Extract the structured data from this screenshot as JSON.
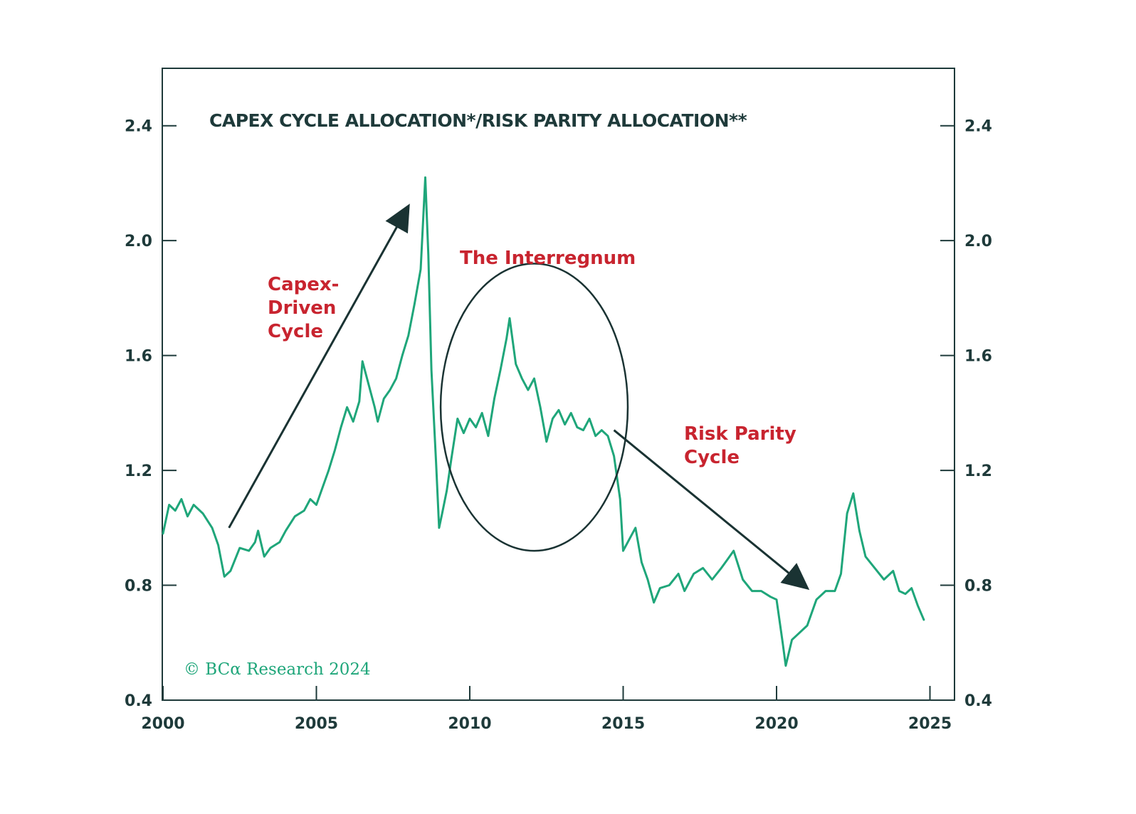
{
  "colors": {
    "line": "#1fa67a",
    "frame": "#1e3a3a",
    "annotation": "#c8242f",
    "arrow": "#1a3333"
  },
  "chart_data": {
    "type": "line",
    "title": "CAPEX CYCLE ALLOCATION*/RISK PARITY ALLOCATION**",
    "xlim": [
      2000,
      2025.8
    ],
    "ylim": [
      0.4,
      2.6
    ],
    "x_ticks": [
      2000,
      2005,
      2010,
      2015,
      2020,
      2025
    ],
    "x_tick_labels": [
      "2000",
      "2005",
      "2010",
      "2015",
      "2020",
      "2025"
    ],
    "y_ticks": [
      0.4,
      0.8,
      1.2,
      1.6,
      2.0,
      2.4
    ],
    "y_tick_labels": [
      "0.4",
      "0.8",
      "1.2",
      "1.6",
      "2.0",
      "2.4"
    ],
    "series": [
      {
        "name": "Capex Cycle Allocation / Risk Parity Allocation",
        "x": [
          2000.0,
          2000.2,
          2000.4,
          2000.6,
          2000.8,
          2001.0,
          2001.3,
          2001.6,
          2001.8,
          2002.0,
          2002.2,
          2002.5,
          2002.8,
          2003.0,
          2003.1,
          2003.3,
          2003.5,
          2003.8,
          2004.0,
          2004.3,
          2004.6,
          2004.8,
          2005.0,
          2005.2,
          2005.4,
          2005.6,
          2005.8,
          2006.0,
          2006.2,
          2006.4,
          2006.5,
          2006.7,
          2006.9,
          2007.0,
          2007.2,
          2007.4,
          2007.6,
          2007.8,
          2008.0,
          2008.2,
          2008.4,
          2008.55,
          2008.65,
          2008.75,
          2008.9,
          2009.0,
          2009.1,
          2009.25,
          2009.4,
          2009.6,
          2009.8,
          2010.0,
          2010.2,
          2010.4,
          2010.6,
          2010.8,
          2011.0,
          2011.2,
          2011.3,
          2011.5,
          2011.7,
          2011.9,
          2012.1,
          2012.3,
          2012.5,
          2012.7,
          2012.9,
          2013.1,
          2013.3,
          2013.5,
          2013.7,
          2013.9,
          2014.1,
          2014.3,
          2014.5,
          2014.7,
          2014.9,
          2015.0,
          2015.2,
          2015.4,
          2015.6,
          2015.8,
          2016.0,
          2016.2,
          2016.5,
          2016.8,
          2017.0,
          2017.3,
          2017.6,
          2017.9,
          2018.2,
          2018.4,
          2018.6,
          2018.9,
          2019.2,
          2019.5,
          2019.8,
          2020.0,
          2020.2,
          2020.3,
          2020.5,
          2020.7,
          2021.0,
          2021.3,
          2021.6,
          2021.9,
          2022.1,
          2022.3,
          2022.5,
          2022.7,
          2022.9,
          2023.2,
          2023.5,
          2023.8,
          2024.0,
          2024.2,
          2024.4,
          2024.6,
          2024.8
        ],
        "y": [
          0.98,
          1.08,
          1.06,
          1.1,
          1.04,
          1.08,
          1.05,
          1.0,
          0.94,
          0.83,
          0.85,
          0.93,
          0.92,
          0.95,
          0.99,
          0.9,
          0.93,
          0.95,
          0.99,
          1.04,
          1.06,
          1.1,
          1.08,
          1.14,
          1.2,
          1.27,
          1.35,
          1.42,
          1.37,
          1.44,
          1.58,
          1.5,
          1.42,
          1.37,
          1.45,
          1.48,
          1.52,
          1.6,
          1.67,
          1.78,
          1.9,
          2.22,
          1.95,
          1.55,
          1.23,
          1.0,
          1.05,
          1.13,
          1.24,
          1.38,
          1.33,
          1.38,
          1.35,
          1.4,
          1.32,
          1.45,
          1.55,
          1.66,
          1.73,
          1.57,
          1.52,
          1.48,
          1.52,
          1.42,
          1.3,
          1.38,
          1.41,
          1.36,
          1.4,
          1.35,
          1.34,
          1.38,
          1.32,
          1.34,
          1.32,
          1.25,
          1.1,
          0.92,
          0.96,
          1.0,
          0.88,
          0.82,
          0.74,
          0.79,
          0.8,
          0.84,
          0.78,
          0.84,
          0.86,
          0.82,
          0.86,
          0.89,
          0.92,
          0.82,
          0.78,
          0.78,
          0.76,
          0.75,
          0.6,
          0.52,
          0.61,
          0.63,
          0.66,
          0.75,
          0.78,
          0.78,
          0.84,
          1.05,
          1.12,
          0.99,
          0.9,
          0.86,
          0.82,
          0.85,
          0.78,
          0.77,
          0.79,
          0.73,
          0.68
        ]
      }
    ],
    "annotations": [
      {
        "text_lines": [
          "Capex-",
          "Driven",
          "Cycle"
        ],
        "x": 2003.7,
        "y": 1.9
      },
      {
        "text_lines": [
          "The Interregnum"
        ],
        "x": 2010.0,
        "y": 2.0
      },
      {
        "text_lines": [
          "Risk Parity",
          "Cycle"
        ],
        "x": 2017.5,
        "y": 1.32
      }
    ],
    "arrows": [
      {
        "from": [
          2002.15,
          1.0
        ],
        "to": [
          2008.0,
          2.12
        ]
      },
      {
        "from": [
          2014.7,
          1.34
        ],
        "to": [
          2021.0,
          0.79
        ]
      }
    ],
    "highlight_region": {
      "x_center": 2012.1,
      "y_center": 1.42,
      "x_radius": 3.05,
      "y_radius": 0.5
    },
    "source_note": "© BCα Research 2024"
  }
}
